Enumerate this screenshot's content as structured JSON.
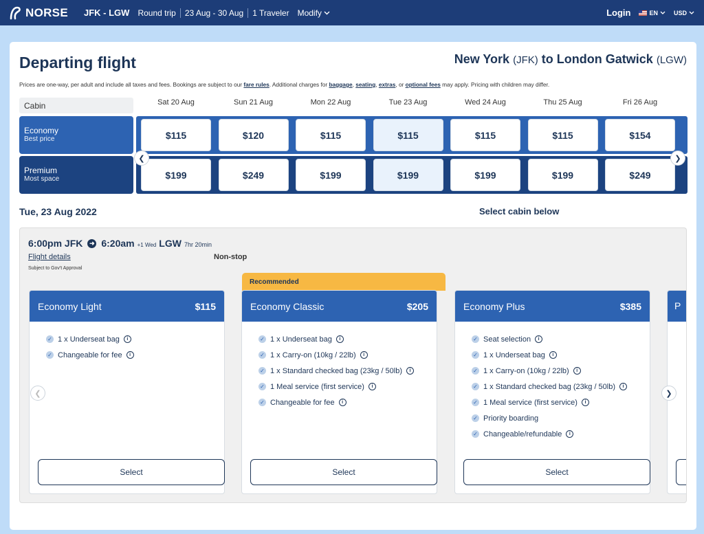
{
  "header": {
    "brand": "NORSE",
    "route": "JFK - LGW",
    "trip_type": "Round trip",
    "dates": "23 Aug - 30 Aug",
    "travelers": "1 Traveler",
    "modify": "Modify",
    "login": "Login",
    "language": "EN",
    "currency": "USD"
  },
  "page": {
    "title": "Departing flight",
    "dest_from": "New York",
    "dest_from_code": "(JFK)",
    "dest_to_word": "to",
    "dest_to": "London Gatwick",
    "dest_to_code": "(LGW)",
    "note_1": "Prices are one-way, per adult and include all taxes and fees. Bookings are subject to our ",
    "fare_rules": "fare rules",
    "note_2": ". Additional charges for ",
    "baggage": "baggage",
    "seating": "seating",
    "extras": "extras",
    "note_3": ", or ",
    "optional_fees": "optional fees",
    "note_4": " may apply. Pricing with children may differ.",
    "comma": ","
  },
  "calendar": {
    "cabin_label": "Cabin",
    "dates": [
      "Sat 20 Aug",
      "Sun 21 Aug",
      "Mon 22 Aug",
      "Tue 23 Aug",
      "Wed 24 Aug",
      "Thu 25 Aug",
      "Fri 26 Aug"
    ],
    "economy": {
      "name": "Economy",
      "sub": "Best price",
      "prices": [
        "$115",
        "$120",
        "$115",
        "$115",
        "$115",
        "$115",
        "$154"
      ]
    },
    "premium": {
      "name": "Premium",
      "sub": "Most space",
      "prices": [
        "$199",
        "$249",
        "$199",
        "$199",
        "$199",
        "$199",
        "$249"
      ]
    },
    "selected_index": 3
  },
  "selection": {
    "date": "Tue, 23 Aug 2022",
    "cabin_prompt": "Select cabin below"
  },
  "flight": {
    "depart_time": "6:00pm JFK",
    "arrive_time": "6:20am",
    "plus_day": "+1 Wed",
    "arrive_code": "LGW",
    "duration": "7hr 20min",
    "details": "Flight details",
    "stops": "Non-stop",
    "approval": "Subject to Gov't Approval"
  },
  "fares": {
    "recommended": "Recommended",
    "select_label": "Select",
    "light": {
      "name": "Economy Light",
      "price": "$115",
      "features": [
        "1 x Underseat bag",
        "Changeable for fee"
      ]
    },
    "classic": {
      "name": "Economy Classic",
      "price": "$205",
      "features": [
        "1 x Underseat bag",
        "1 x Carry-on (10kg / 22lb)",
        "1 x Standard checked bag (23kg / 50lb)",
        "1 Meal service (first service)",
        "Changeable for fee"
      ]
    },
    "plus": {
      "name": "Economy Plus",
      "price": "$385",
      "features": [
        "Seat selection",
        "1 x Underseat bag",
        "1 x Carry-on (10kg / 22lb)",
        "1 x Standard checked bag (23kg / 50lb)",
        "1 Meal service (first service)",
        "Priority boarding",
        "Changeable/refundable"
      ]
    },
    "partial_initial": "P"
  },
  "colors": {
    "nav": "#1d3d78",
    "economy": "#2d63b2",
    "premium": "#1c4380",
    "recommended": "#f7b843"
  }
}
